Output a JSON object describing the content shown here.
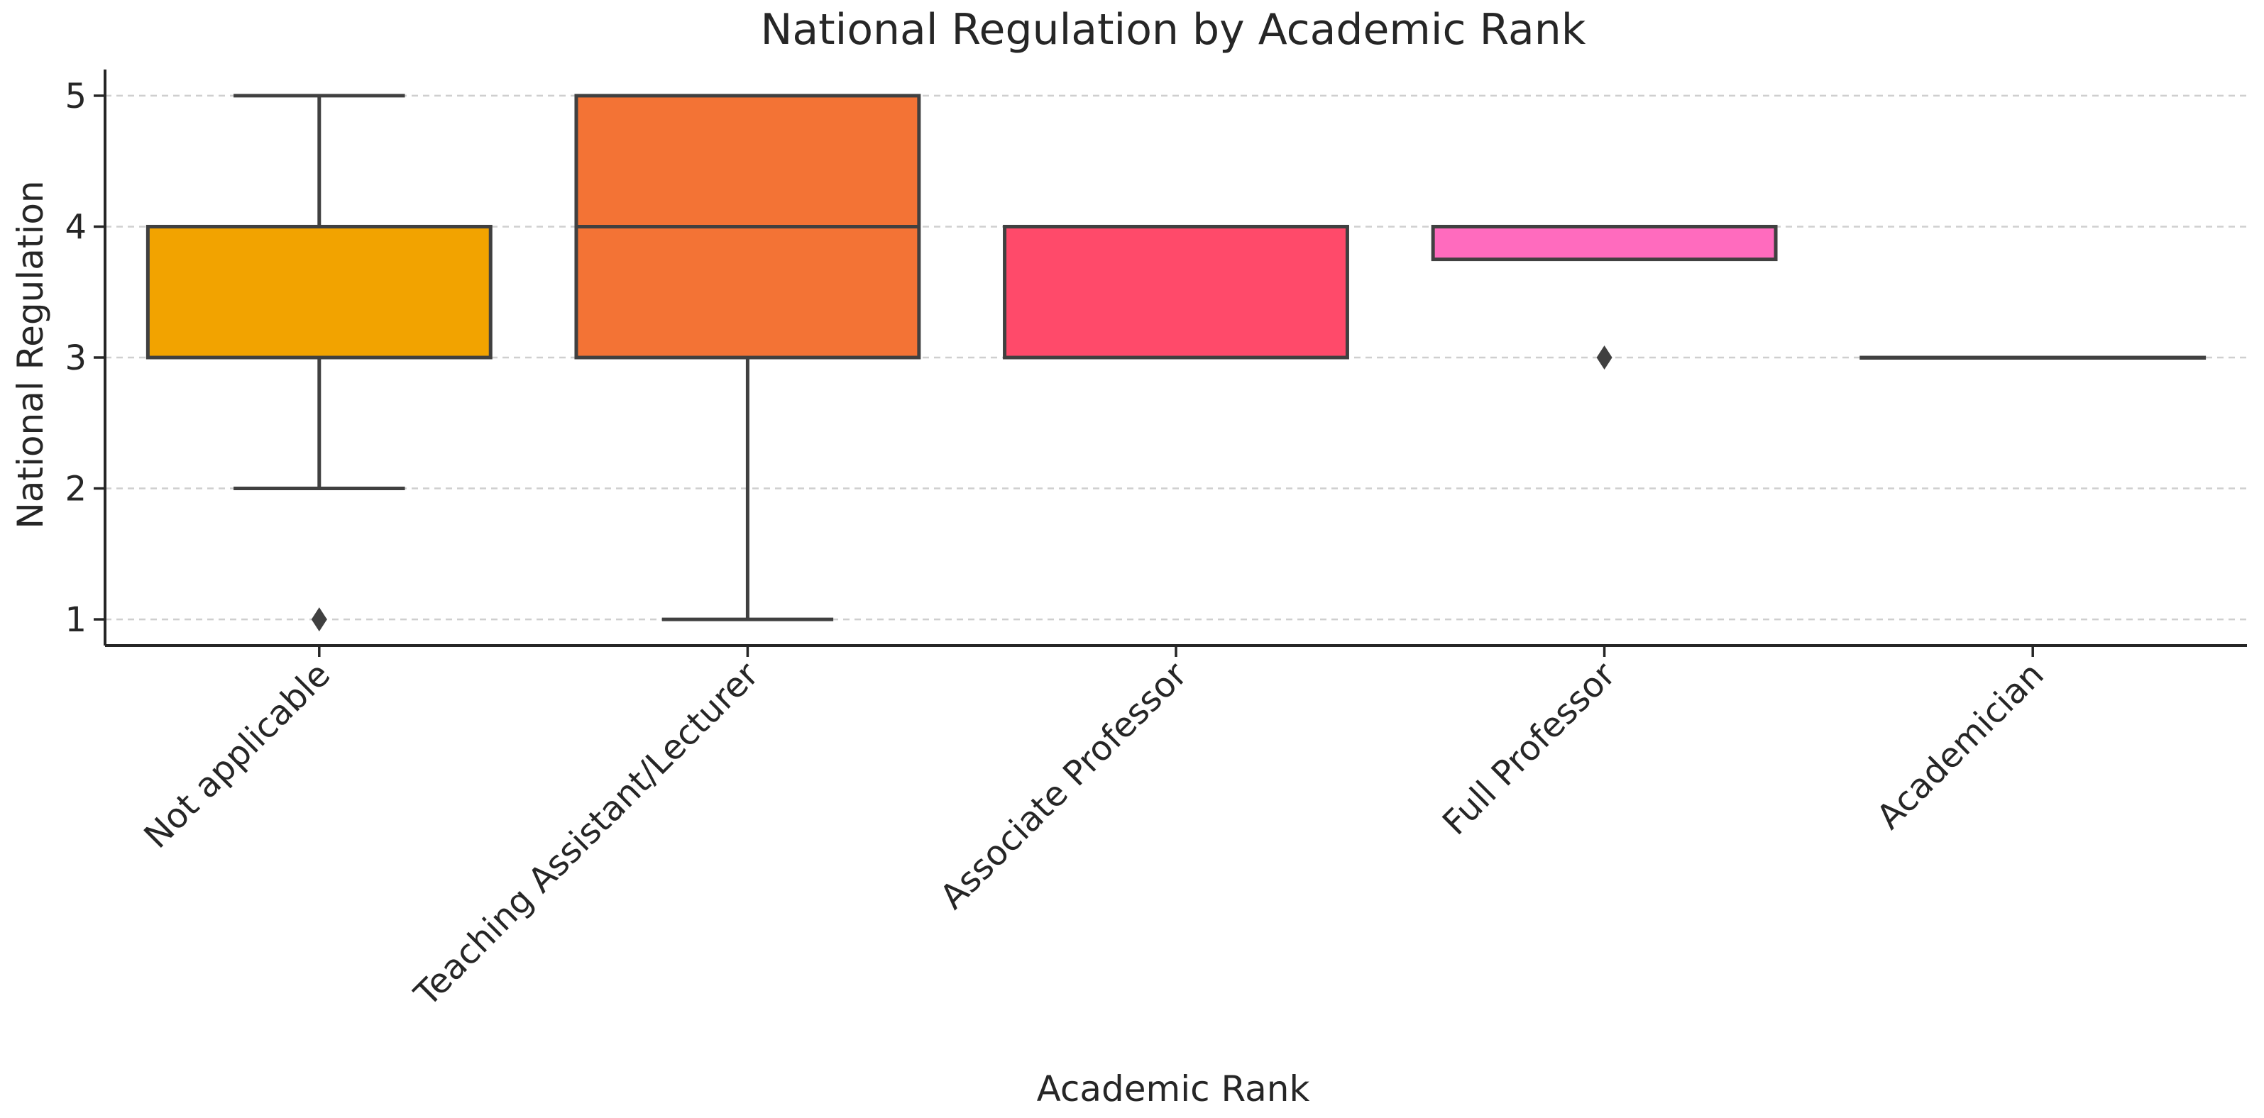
{
  "chart_data": {
    "type": "box",
    "title": "National Regulation by Academic Rank",
    "xlabel": "Academic Rank",
    "ylabel": "National Regulation",
    "ylim": [
      0.8,
      5.2
    ],
    "yticks": [
      1,
      2,
      3,
      4,
      5
    ],
    "grid": "horizontal-dashed",
    "categories": [
      "Not applicable",
      "Teaching Assistant/Lecturer",
      "Associate Professor",
      "Full Professor",
      "Academician"
    ],
    "boxes": [
      {
        "category": "Not applicable",
        "whisker_low": 2,
        "q1": 3,
        "median": 4,
        "q3": 4,
        "whisker_high": 5,
        "outliers": [
          1
        ],
        "color": "#F2A300"
      },
      {
        "category": "Teaching Assistant/Lecturer",
        "whisker_low": 1,
        "q1": 3,
        "median": 4,
        "q3": 5,
        "whisker_high": 5,
        "outliers": [],
        "color": "#F37335"
      },
      {
        "category": "Associate Professor",
        "whisker_low": 3,
        "q1": 3,
        "median": 4,
        "q3": 4,
        "whisker_high": 4,
        "outliers": [],
        "color": "#FF4A6A"
      },
      {
        "category": "Full Professor",
        "whisker_low": 3.75,
        "q1": 3.75,
        "median": 4,
        "q3": 4,
        "whisker_high": 4,
        "outliers": [
          3
        ],
        "color": "#FF6BBE"
      },
      {
        "category": "Academician",
        "whisker_low": 3,
        "q1": 3,
        "median": 3,
        "q3": 3,
        "whisker_high": 3,
        "outliers": [],
        "color": "#E040F0"
      }
    ]
  }
}
